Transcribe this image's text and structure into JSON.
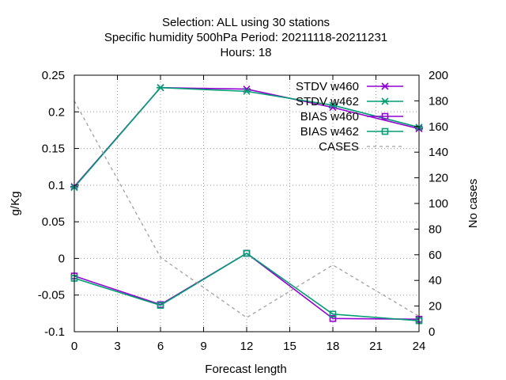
{
  "chart_data": {
    "type": "line",
    "title_lines": [
      "Selection: ALL using    30 stations",
      "Specific humidity 500hPa   Period: 20211118-20211231",
      "Hours:  18"
    ],
    "xlabel": "Forecast length",
    "ylabel": "g/Kg",
    "y2label": "No cases",
    "xlim": [
      0,
      24
    ],
    "ylim": [
      -0.1,
      0.25
    ],
    "y2lim": [
      0,
      200
    ],
    "xticks": [
      0,
      3,
      6,
      9,
      12,
      15,
      18,
      21,
      24
    ],
    "yticks": [
      -0.1,
      -0.05,
      0,
      0.05,
      0.1,
      0.15,
      0.2,
      0.25
    ],
    "ytick_labels": [
      "-0.1",
      "-0.05",
      "0",
      "0.05",
      "0.1",
      "0.15",
      "0.2",
      "0.25"
    ],
    "y2ticks": [
      0,
      20,
      40,
      60,
      80,
      100,
      120,
      140,
      160,
      180,
      200
    ],
    "grid": true,
    "legend_position": "top-right",
    "x": [
      0,
      6,
      12,
      18,
      24
    ],
    "series": [
      {
        "name": "STDV w460",
        "axis": "y",
        "color": "#9400d3",
        "marker": "asterisk",
        "dash": "",
        "values": [
          0.098,
          0.233,
          0.231,
          0.206,
          0.177
        ]
      },
      {
        "name": "STDV w462",
        "axis": "y",
        "color": "#009e73",
        "marker": "asterisk",
        "dash": "",
        "values": [
          0.097,
          0.233,
          0.228,
          0.209,
          0.179
        ]
      },
      {
        "name": "BIAS w460",
        "axis": "y",
        "color": "#9400d3",
        "marker": "square",
        "dash": "",
        "values": [
          -0.024,
          -0.063,
          0.007,
          -0.082,
          -0.083
        ]
      },
      {
        "name": "BIAS w462",
        "axis": "y",
        "color": "#009e73",
        "marker": "square",
        "dash": "",
        "values": [
          -0.027,
          -0.064,
          0.007,
          -0.076,
          -0.085
        ]
      },
      {
        "name": "CASES",
        "axis": "y2",
        "color": "#a0a0a0",
        "marker": "none",
        "dash": "4,4",
        "values": [
          180,
          58,
          11,
          52,
          12
        ]
      }
    ]
  }
}
